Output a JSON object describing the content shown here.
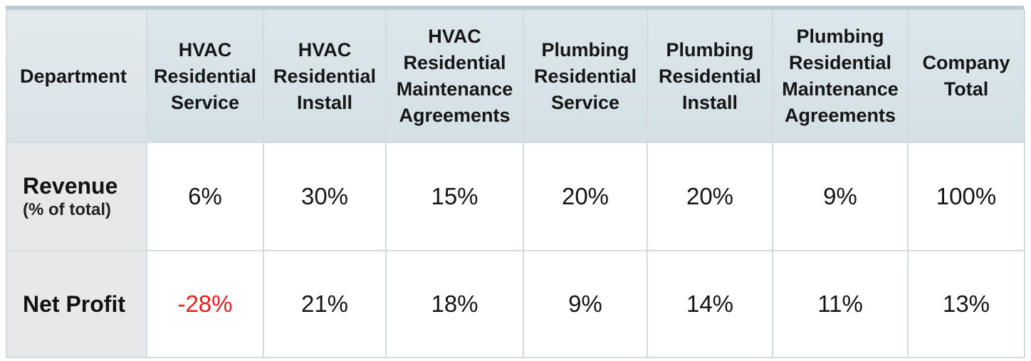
{
  "chart_data": {
    "type": "table",
    "header_label": "Department",
    "columns": [
      "HVAC Residential Service",
      "HVAC Residential Install",
      "HVAC Residential Maintenance Agreements",
      "Plumbing Residential Service",
      "Plumbing Residential Install",
      "Plumbing Residential Maintenance Agreements",
      "Company Total"
    ],
    "rows": [
      {
        "label": "Revenue",
        "sublabel": "(% of total)",
        "values": [
          "6%",
          "30%",
          "15%",
          "20%",
          "20%",
          "9%",
          "100%"
        ]
      },
      {
        "label": "Net Profit",
        "values": [
          "-28%",
          "21%",
          "18%",
          "9%",
          "14%",
          "11%",
          "13%"
        ]
      }
    ],
    "colors": {
      "header_bg": "#d3e0e5",
      "label_bg": "#e6e8ea",
      "negative": "#ea1c1c",
      "border": "#d3dbde"
    }
  }
}
